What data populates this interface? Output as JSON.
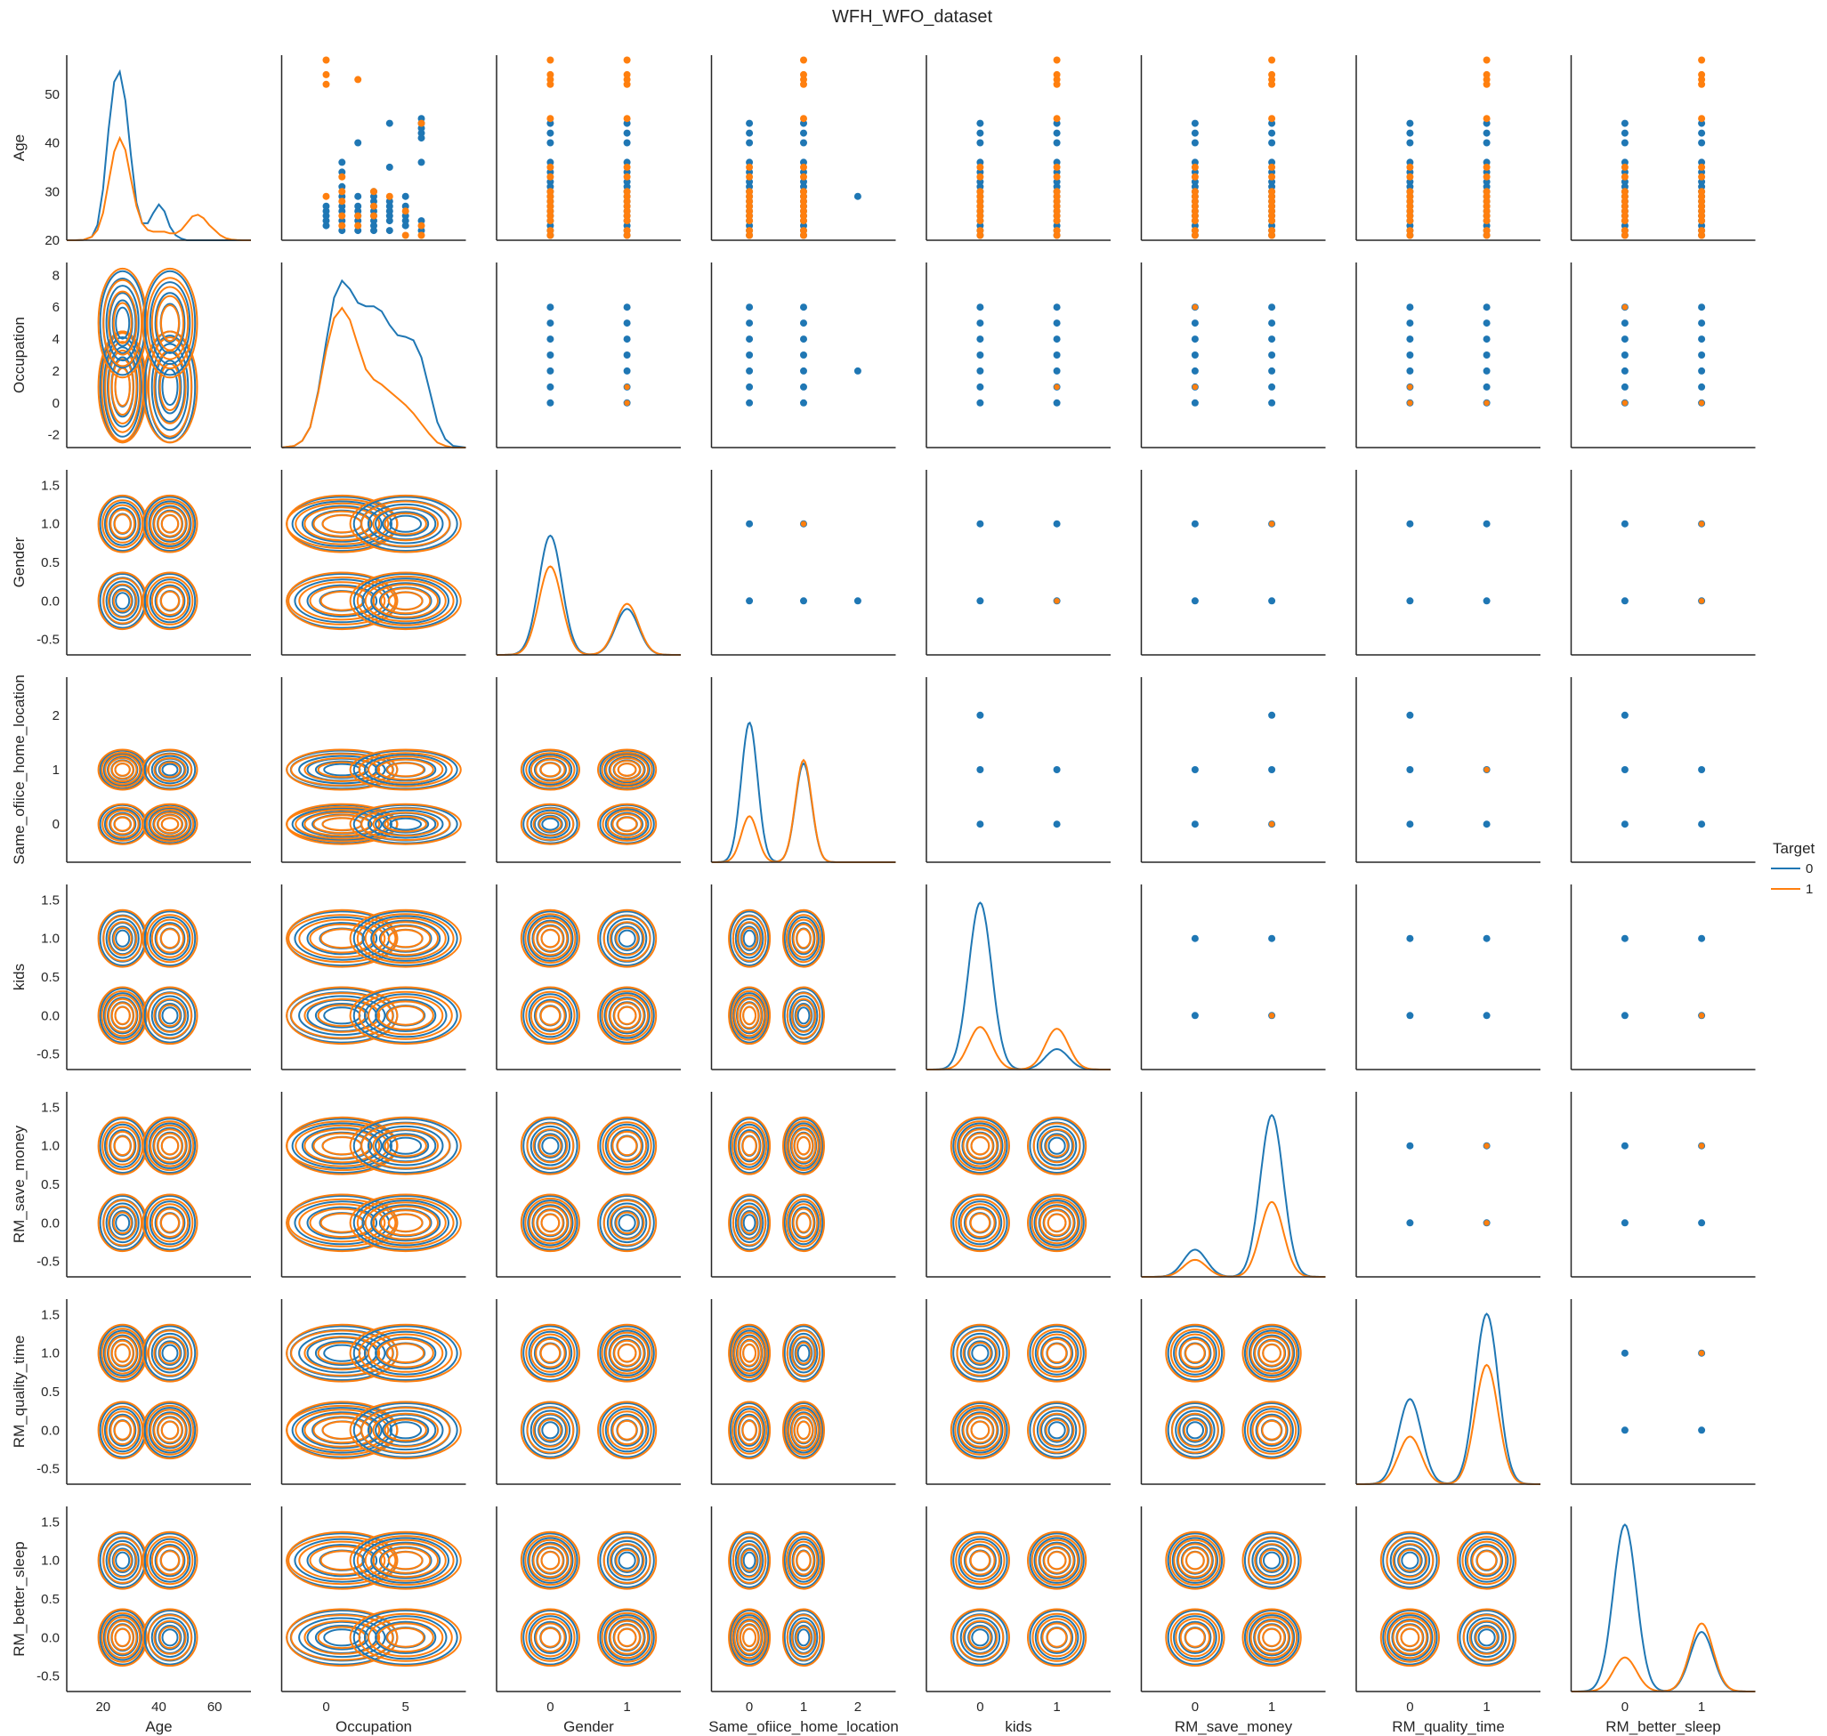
{
  "chart_data": {
    "type": "scatter",
    "subtype": "pairplot",
    "title": "WFH_WFO_dataset",
    "variables": [
      "Age",
      "Occupation",
      "Gender",
      "Same_ofiice_home_location",
      "kids",
      "RM_save_money",
      "RM_quality_time",
      "RM_better_sleep"
    ],
    "diagonal": "kde",
    "lower_triangle": "kde contour",
    "upper_triangle": "scatter",
    "hue": "Target",
    "legend": {
      "title": "Target",
      "entries": [
        "0",
        "1"
      ],
      "position": "right"
    },
    "colors": {
      "0": "#1f77b4",
      "1": "#ff7f0e"
    },
    "grid": false,
    "axes": {
      "Age": {
        "lim": [
          7,
          73
        ],
        "ticks": [
          20,
          30,
          40,
          50
        ],
        "x_ticks": [
          20,
          40,
          60
        ]
      },
      "Occupation": {
        "lim": [
          -2.8,
          8.8
        ],
        "ticks": [
          -2,
          0,
          2,
          4,
          6,
          8
        ],
        "x_ticks": [
          0,
          5
        ]
      },
      "Gender": {
        "lim": [
          -0.7,
          1.7
        ],
        "ticks": [
          -0.5,
          0.0,
          0.5,
          1.0,
          1.5
        ],
        "x_ticks": [
          0,
          1
        ]
      },
      "Same_ofiice_home_location": {
        "lim": [
          -0.7,
          2.7
        ],
        "ticks": [
          0,
          1,
          2
        ],
        "x_ticks": [
          0,
          1,
          2
        ]
      },
      "kids": {
        "lim": [
          -0.7,
          1.7
        ],
        "ticks": [
          -0.5,
          0.0,
          0.5,
          1.0,
          1.5
        ],
        "x_ticks": [
          0,
          1
        ]
      },
      "RM_save_money": {
        "lim": [
          -0.7,
          1.7
        ],
        "ticks": [
          -0.5,
          0.0,
          0.5,
          1.0,
          1.5
        ],
        "x_ticks": [
          0,
          1
        ]
      },
      "RM_quality_time": {
        "lim": [
          -0.7,
          1.7
        ],
        "ticks": [
          -0.5,
          0.0,
          0.5,
          1.0,
          1.5
        ],
        "x_ticks": [
          0,
          1
        ]
      },
      "RM_better_sleep": {
        "lim": [
          -0.7,
          1.7
        ],
        "ticks": [
          -0.5,
          0.0,
          0.5,
          1.0,
          1.5
        ],
        "x_ticks": [
          0,
          1
        ]
      }
    },
    "tick_format": {
      "Age": "int",
      "Occupation": "int",
      "Gender": "1f",
      "Same_ofiice_home_location": "int",
      "kids": "1f",
      "RM_save_money": "1f",
      "RM_quality_time": "1f",
      "RM_better_sleep": "1f"
    },
    "age_ylim": [
      20,
      58
    ],
    "scatter": {
      "Age_values_by_target": {
        "0": [
          21,
          22,
          23,
          24,
          25,
          26,
          27,
          28,
          29,
          30,
          31,
          32,
          34,
          36,
          40,
          42,
          44
        ],
        "1": [
          21,
          22,
          24,
          25,
          26,
          27,
          28,
          29,
          30,
          33,
          35,
          45,
          52,
          53,
          54,
          57
        ]
      },
      "Age_vs_Occupation": [
        {
          "x": 0,
          "ys": [
            23,
            24,
            25,
            26,
            27
          ],
          "t": 0
        },
        {
          "x": 0,
          "ys": [
            29,
            52,
            54,
            57
          ],
          "t": 1
        },
        {
          "x": 1,
          "ys": [
            22,
            24,
            26,
            27,
            29,
            31,
            34,
            36
          ],
          "t": 0
        },
        {
          "x": 1,
          "ys": [
            23,
            25,
            28,
            30,
            33
          ],
          "t": 1
        },
        {
          "x": 2,
          "ys": [
            22,
            24,
            25,
            26,
            27,
            29,
            40
          ],
          "t": 0
        },
        {
          "x": 2,
          "ys": [
            23,
            25,
            53
          ],
          "t": 1
        },
        {
          "x": 3,
          "ys": [
            22,
            23,
            24,
            25,
            26,
            27,
            28,
            29,
            30
          ],
          "t": 0
        },
        {
          "x": 3,
          "ys": [
            25,
            27,
            30
          ],
          "t": 1
        },
        {
          "x": 4,
          "ys": [
            22,
            24,
            25,
            26,
            27,
            28,
            35,
            44
          ],
          "t": 0
        },
        {
          "x": 4,
          "ys": [
            29
          ],
          "t": 1
        },
        {
          "x": 5,
          "ys": [
            23,
            24,
            25,
            27,
            29
          ],
          "t": 0
        },
        {
          "x": 5,
          "ys": [
            21,
            26
          ],
          "t": 1
        },
        {
          "x": 6,
          "ys": [
            22,
            24,
            36,
            41,
            42,
            43,
            44,
            45
          ],
          "t": 0
        },
        {
          "x": 6,
          "ys": [
            21,
            23,
            44
          ],
          "t": 1
        }
      ]
    },
    "kde_diagonal": {
      "Age": {
        "x": [
          7,
          10,
          13,
          16,
          18,
          20,
          22,
          24,
          26,
          28,
          30,
          32,
          34,
          36,
          38,
          40,
          42,
          44,
          46,
          48,
          50,
          52,
          54,
          56,
          58,
          60,
          62,
          64,
          66,
          68,
          70,
          73
        ],
        "0": [
          0,
          0,
          0.002,
          0.02,
          0.09,
          0.3,
          0.65,
          0.93,
          0.99,
          0.82,
          0.5,
          0.22,
          0.1,
          0.1,
          0.16,
          0.21,
          0.17,
          0.08,
          0.03,
          0.01,
          0,
          0,
          0,
          0,
          0,
          0,
          0,
          0,
          0,
          0,
          0,
          0
        ],
        "1": [
          0,
          0,
          0.002,
          0.02,
          0.06,
          0.16,
          0.34,
          0.52,
          0.6,
          0.53,
          0.36,
          0.2,
          0.1,
          0.06,
          0.05,
          0.05,
          0.05,
          0.04,
          0.04,
          0.06,
          0.1,
          0.14,
          0.15,
          0.13,
          0.09,
          0.06,
          0.03,
          0.012,
          0.004,
          0.001,
          0,
          0
        ]
      },
      "Occupation": {
        "x": [
          -2.8,
          -2,
          -1.5,
          -1,
          -0.5,
          0,
          0.5,
          1,
          1.5,
          2,
          2.5,
          3,
          3.5,
          4,
          4.5,
          5,
          5.5,
          6,
          6.5,
          7,
          7.5,
          8,
          8.8
        ],
        "0": [
          0,
          0.01,
          0.04,
          0.12,
          0.33,
          0.62,
          0.88,
          0.98,
          0.93,
          0.85,
          0.83,
          0.83,
          0.8,
          0.72,
          0.66,
          0.65,
          0.63,
          0.53,
          0.34,
          0.15,
          0.05,
          0.01,
          0
        ],
        "1": [
          0,
          0.01,
          0.04,
          0.12,
          0.32,
          0.57,
          0.76,
          0.82,
          0.75,
          0.6,
          0.46,
          0.4,
          0.37,
          0.33,
          0.29,
          0.25,
          0.2,
          0.14,
          0.08,
          0.03,
          0.01,
          0,
          0
        ]
      },
      "Gender": {
        "p0": {
          "0": 0.7,
          "1": 0.52
        },
        "p1": {
          "0": 0.27,
          "1": 0.3
        }
      },
      "Same_ofiice_home_location": {
        "p0": {
          "0": 0.82,
          "1": 0.27
        },
        "p1": {
          "0": 0.58,
          "1": 0.6
        }
      },
      "kids": {
        "p0": {
          "0": 0.98,
          "1": 0.25
        },
        "p1": {
          "0": 0.12,
          "1": 0.24
        }
      },
      "RM_save_money": {
        "p0": {
          "0": 0.16,
          "1": 0.1
        },
        "p1": {
          "0": 0.95,
          "1": 0.44
        }
      },
      "RM_quality_time": {
        "p0": {
          "0": 0.5,
          "1": 0.28
        },
        "p1": {
          "0": 1.0,
          "1": 0.7
        }
      },
      "RM_better_sleep": {
        "p0": {
          "0": 0.98,
          "1": 0.2
        },
        "p1": {
          "0": 0.35,
          "1": 0.4
        }
      }
    }
  }
}
